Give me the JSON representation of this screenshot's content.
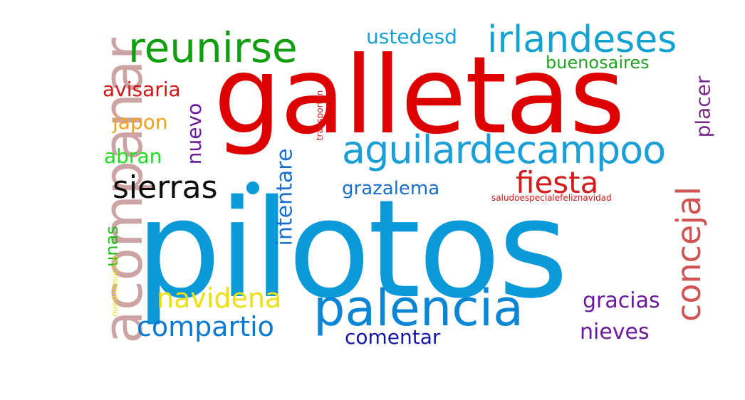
{
  "word_cloud": {
    "words": [
      {
        "text": "pilotos",
        "color": "#0a99d9",
        "orientation": "horizontal"
      },
      {
        "text": "galletas",
        "color": "#dd0000",
        "orientation": "horizontal"
      },
      {
        "text": "acompanar",
        "color": "#cda3a3",
        "orientation": "vertical"
      },
      {
        "text": "aguilardecampoo",
        "color": "#1a9fd9",
        "orientation": "horizontal"
      },
      {
        "text": "palencia",
        "color": "#0a86d4",
        "orientation": "horizontal"
      },
      {
        "text": "irlandeses",
        "color": "#14a3d1",
        "orientation": "horizontal"
      },
      {
        "text": "reunirse",
        "color": "#119e11",
        "orientation": "horizontal"
      },
      {
        "text": "concejal",
        "color": "#d05454",
        "orientation": "vertical"
      },
      {
        "text": "fiesta",
        "color": "#d41b1b",
        "orientation": "horizontal"
      },
      {
        "text": "sierras",
        "color": "#0d0d0d",
        "orientation": "horizontal"
      },
      {
        "text": "compartio",
        "color": "#0a79d1",
        "orientation": "horizontal"
      },
      {
        "text": "navidena",
        "color": "#ece010",
        "orientation": "horizontal"
      },
      {
        "text": "intentare",
        "color": "#1a6fd0",
        "orientation": "vertical"
      },
      {
        "text": "ustedesd",
        "color": "#14a0d9",
        "orientation": "horizontal"
      },
      {
        "text": "avisaria",
        "color": "#d41414",
        "orientation": "horizontal"
      },
      {
        "text": "japon",
        "color": "#f0a21a",
        "orientation": "horizontal"
      },
      {
        "text": "abran",
        "color": "#1ee01e",
        "orientation": "horizontal"
      },
      {
        "text": "nuevo",
        "color": "#6a1a9a",
        "orientation": "vertical"
      },
      {
        "text": "grazalema",
        "color": "#1a6fd0",
        "orientation": "horizontal"
      },
      {
        "text": "buenosaires",
        "color": "#22a022",
        "orientation": "horizontal"
      },
      {
        "text": "placer",
        "color": "#7a2a8a",
        "orientation": "vertical"
      },
      {
        "text": "gracias",
        "color": "#6a1a9a",
        "orientation": "horizontal"
      },
      {
        "text": "nieves",
        "color": "#6a1a9a",
        "orientation": "horizontal"
      },
      {
        "text": "comentar",
        "color": "#1414a8",
        "orientation": "horizontal"
      },
      {
        "text": "unas",
        "color": "#1ec01e",
        "orientation": "vertical"
      },
      {
        "text": "transportan",
        "color": "#d41414",
        "orientation": "vertical"
      },
      {
        "text": "saludoespecialefeliznavidad",
        "color": "#d41414",
        "orientation": "horizontal"
      },
      {
        "text": "nuestrossuenos",
        "color": "#ece010",
        "orientation": "vertical"
      }
    ]
  }
}
